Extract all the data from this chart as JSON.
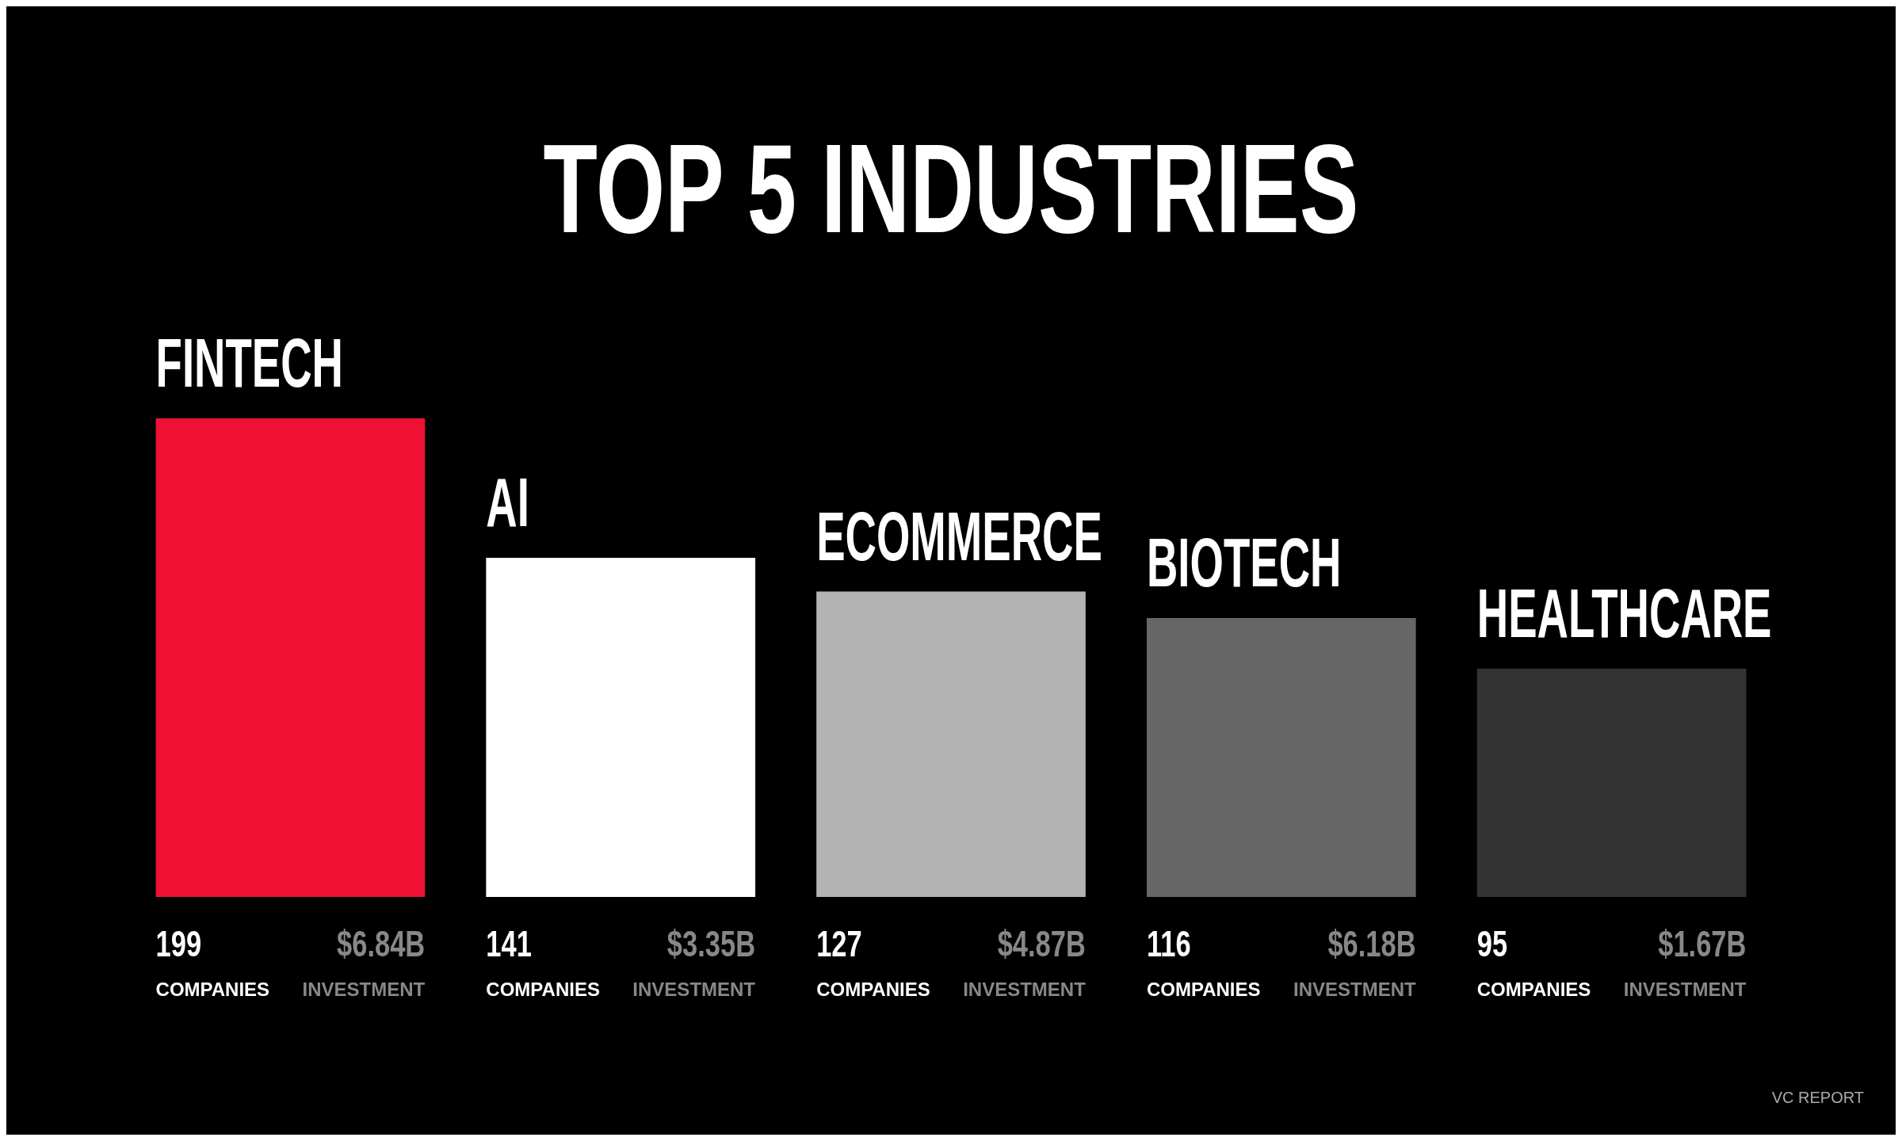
{
  "chart_data": {
    "type": "bar",
    "title": "TOP 5 INDUSTRIES",
    "categories": [
      "FINTECH",
      "AI",
      "ECOMMERCE",
      "BIOTECH",
      "HEALTHCARE"
    ],
    "values": [
      199,
      141,
      127,
      116,
      95
    ],
    "colors": [
      "#ee1133",
      "#ffffff",
      "#b3b3b3",
      "#666666",
      "#333333"
    ],
    "data_labels": true,
    "legend": false,
    "tick_labels": false,
    "annotations": [
      "COMPANIES",
      "INVESTMENT",
      "$6.84B",
      "$3.35B",
      "$4.87B",
      "$6.18B",
      "$1.67B",
      "VC REPORT"
    ]
  }
}
